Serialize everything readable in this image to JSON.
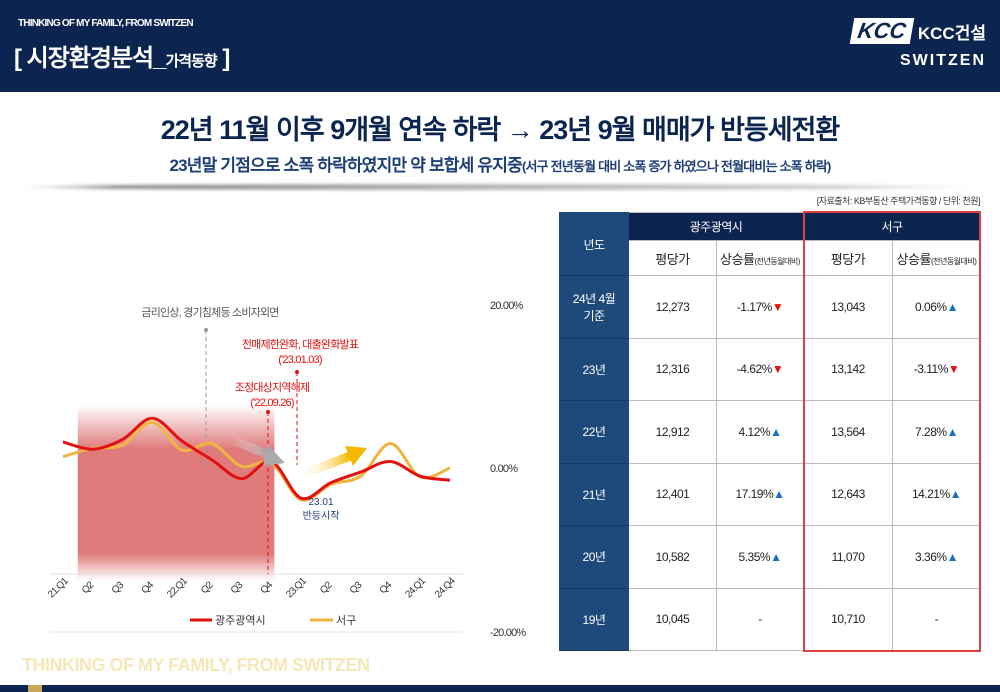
{
  "header": {
    "tagline": "THINKING OF MY FAMILY, FROM SWITZEN",
    "title": "[ 시장환경분석_",
    "title_sub": "가격동향",
    "title_end": " ]",
    "logo_kcc": "KCC",
    "logo_name": "KCC건설",
    "logo_brand": "SWITZEN"
  },
  "headline": "22년 11월 이후 9개월 연속 하락 → 23년 9월 매매가 반등세전환",
  "subheadline": "23년말 기점으로 소폭 하락하였지만 약 보합세 유지중",
  "subheadline_note": "(서구 전년동월 대비 소폭 증가 하였으나 전월대비는 소폭 하락)",
  "source": "[자료출처: KB부동산 주택가격동향 / 단위: 천원]",
  "colors": {
    "navy": "#0c2550",
    "gwangju": "#e31010",
    "seogu": "#f0b440",
    "up": "#1a6fc4",
    "down": "#e31010"
  },
  "chart_data": {
    "type": "line",
    "categories": [
      "21.Q1",
      "Q2",
      "Q3",
      "Q4",
      "22.Q1",
      "Q2",
      "Q3",
      "Q4",
      "23.Q1",
      "Q2",
      "Q3",
      "Q4",
      "24.Q1",
      "24.Q4"
    ],
    "ylim": [
      -20,
      20
    ],
    "yticks": [
      "20.00%",
      "0.00%",
      "-20.00%"
    ],
    "series": [
      {
        "name": "광주광역시",
        "color": "#e31010",
        "values": [
          3.2,
          2.3,
          3.5,
          6.1,
          3.3,
          1.0,
          -1.3,
          0.8,
          -3.7,
          -1.8,
          -0.5,
          0.8,
          -1.0,
          -1.5
        ]
      },
      {
        "name": "서구",
        "color": "#f0b440",
        "values": [
          1.4,
          2.4,
          2.8,
          5.6,
          2.2,
          3.0,
          0.2,
          0.6,
          -3.9,
          -2.0,
          -1.0,
          3.0,
          -1.1,
          0.0
        ]
      }
    ],
    "shaded_range": [
      "Q2",
      "Q4"
    ],
    "annotations": {
      "a1": "금리인상, 경기침체등 소비자외면",
      "a2": "전매제한완화, 대출완화발표",
      "a2_date": "('23.01.03)",
      "a3": "조정대상지역해제",
      "a3_date": "('22.09.26)",
      "a4": "23.01",
      "a4_text": "반등시작"
    }
  },
  "table": {
    "col_year": "년도",
    "group1": "광주광역시",
    "group2": "서구",
    "price": "평당가",
    "rate": "상승률",
    "rate_note": "(전년동월대비)",
    "rows": [
      {
        "year": "24년 4월 기준",
        "g_price": "12,273",
        "g_rate": "-1.17%",
        "g_dir": "down",
        "s_price": "13,043",
        "s_rate": "0.06%",
        "s_dir": "up"
      },
      {
        "year": "23년",
        "g_price": "12,316",
        "g_rate": "-4.62%",
        "g_dir": "down",
        "s_price": "13,142",
        "s_rate": "-3.11%",
        "s_dir": "down"
      },
      {
        "year": "22년",
        "g_price": "12,912",
        "g_rate": "4.12%",
        "g_dir": "up",
        "s_price": "13,564",
        "s_rate": "7.28%",
        "s_dir": "up"
      },
      {
        "year": "21년",
        "g_price": "12,401",
        "g_rate": "17.19%",
        "g_dir": "up",
        "s_price": "12,643",
        "s_rate": "14.21%",
        "s_dir": "up"
      },
      {
        "year": "20년",
        "g_price": "10,582",
        "g_rate": "5.35%",
        "g_dir": "up",
        "s_price": "11,070",
        "s_rate": "3.36%",
        "s_dir": "up"
      },
      {
        "year": "19년",
        "g_price": "10,045",
        "g_rate": "-",
        "g_dir": "",
        "s_price": "10,710",
        "s_rate": "-",
        "s_dir": ""
      }
    ]
  },
  "footer": "THINKING OF MY FAMILY, FROM SWITZEN"
}
